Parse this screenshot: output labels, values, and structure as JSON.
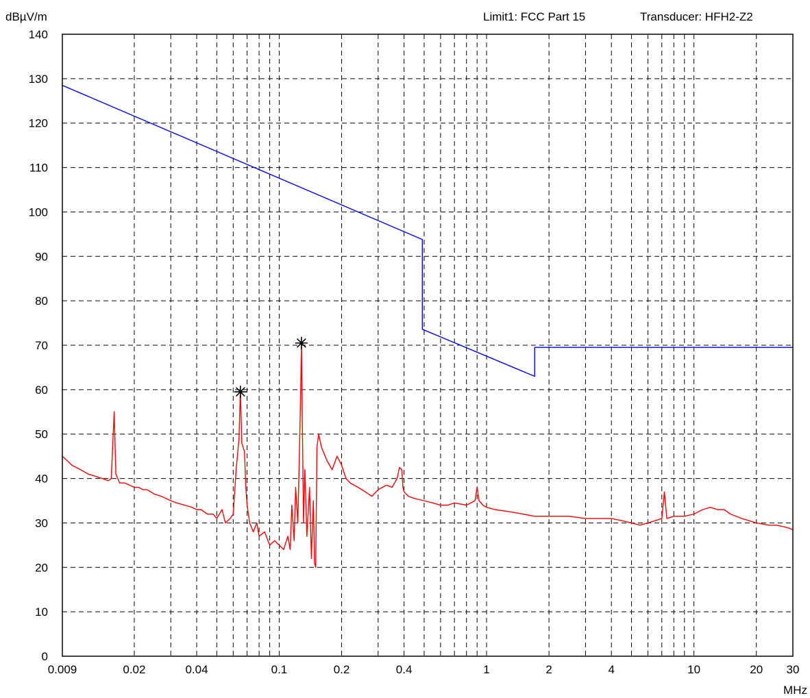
{
  "chart_data": {
    "type": "line",
    "ylabel": "dBµV/m",
    "xlabel": "MHz",
    "header_limit": "Limit1: FCC Part 15",
    "header_transducer": "Transducer: HFH2-Z2",
    "x_scale": "log",
    "xlim": [
      0.009,
      30
    ],
    "ylim": [
      0,
      140
    ],
    "grid": true,
    "x_ticks": [
      {
        "value": 0.009,
        "label": "0.009"
      },
      {
        "value": 0.02,
        "label": "0.02"
      },
      {
        "value": 0.04,
        "label": "0.04"
      },
      {
        "value": 0.1,
        "label": "0.1"
      },
      {
        "value": 0.2,
        "label": "0.2"
      },
      {
        "value": 0.4,
        "label": "0.4"
      },
      {
        "value": 1,
        "label": "1"
      },
      {
        "value": 2,
        "label": "2"
      },
      {
        "value": 4,
        "label": "4"
      },
      {
        "value": 10,
        "label": "10"
      },
      {
        "value": 20,
        "label": "20"
      },
      {
        "value": 30,
        "label": "30"
      }
    ],
    "x_grid": [
      0.009,
      0.02,
      0.03,
      0.04,
      0.05,
      0.06,
      0.07,
      0.08,
      0.09,
      0.1,
      0.2,
      0.3,
      0.4,
      0.5,
      0.6,
      0.7,
      0.8,
      0.9,
      1,
      2,
      3,
      4,
      5,
      6,
      7,
      8,
      9,
      10,
      20,
      30
    ],
    "y_ticks": [
      0,
      10,
      20,
      30,
      40,
      50,
      60,
      70,
      80,
      90,
      100,
      110,
      120,
      130,
      140
    ],
    "series": [
      {
        "color": "#0000ff",
        "points": [
          [
            0.009,
            128.5
          ],
          [
            0.49,
            93.8
          ],
          [
            0.49,
            73.6
          ],
          [
            1.705,
            63.0
          ],
          [
            1.705,
            69.5
          ],
          [
            30,
            69.5
          ]
        ]
      },
      {
        "color": "#ff0000",
        "points": [
          [
            0.009,
            45
          ],
          [
            0.0095,
            44
          ],
          [
            0.01,
            43
          ],
          [
            0.011,
            42
          ],
          [
            0.012,
            41
          ],
          [
            0.013,
            40.5
          ],
          [
            0.014,
            40
          ],
          [
            0.015,
            39.5
          ],
          [
            0.0155,
            40
          ],
          [
            0.016,
            55
          ],
          [
            0.0163,
            41
          ],
          [
            0.017,
            39
          ],
          [
            0.018,
            39
          ],
          [
            0.019,
            38.5
          ],
          [
            0.02,
            38
          ],
          [
            0.021,
            38
          ],
          [
            0.022,
            37.5
          ],
          [
            0.023,
            37.5
          ],
          [
            0.024,
            37
          ],
          [
            0.025,
            36.5
          ],
          [
            0.027,
            36
          ],
          [
            0.03,
            35
          ],
          [
            0.032,
            34.5
          ],
          [
            0.035,
            34
          ],
          [
            0.038,
            33.5
          ],
          [
            0.04,
            33
          ],
          [
            0.042,
            33
          ],
          [
            0.045,
            32
          ],
          [
            0.048,
            32
          ],
          [
            0.05,
            31
          ],
          [
            0.053,
            33
          ],
          [
            0.055,
            30
          ],
          [
            0.058,
            31
          ],
          [
            0.06,
            32
          ],
          [
            0.062,
            42
          ],
          [
            0.064,
            49
          ],
          [
            0.065,
            60
          ],
          [
            0.066,
            48
          ],
          [
            0.068,
            46
          ],
          [
            0.069,
            38
          ],
          [
            0.07,
            34
          ],
          [
            0.072,
            30
          ],
          [
            0.075,
            28
          ],
          [
            0.078,
            30
          ],
          [
            0.08,
            27
          ],
          [
            0.085,
            28
          ],
          [
            0.09,
            25
          ],
          [
            0.095,
            26
          ],
          [
            0.1,
            25
          ],
          [
            0.105,
            24
          ],
          [
            0.11,
            27
          ],
          [
            0.113,
            24
          ],
          [
            0.115,
            34
          ],
          [
            0.118,
            26
          ],
          [
            0.12,
            38
          ],
          [
            0.123,
            30
          ],
          [
            0.125,
            45
          ],
          [
            0.127,
            60
          ],
          [
            0.128,
            70.5
          ],
          [
            0.1295,
            50
          ],
          [
            0.131,
            30
          ],
          [
            0.133,
            42
          ],
          [
            0.136,
            27
          ],
          [
            0.14,
            38
          ],
          [
            0.143,
            22
          ],
          [
            0.146,
            35
          ],
          [
            0.148,
            21
          ],
          [
            0.15,
            20
          ],
          [
            0.152,
            47
          ],
          [
            0.155,
            50
          ],
          [
            0.16,
            47
          ],
          [
            0.17,
            44
          ],
          [
            0.18,
            42
          ],
          [
            0.19,
            45
          ],
          [
            0.2,
            43
          ],
          [
            0.21,
            40
          ],
          [
            0.22,
            39
          ],
          [
            0.24,
            38
          ],
          [
            0.26,
            37
          ],
          [
            0.28,
            36
          ],
          [
            0.3,
            37.5
          ],
          [
            0.33,
            38.5
          ],
          [
            0.35,
            38
          ],
          [
            0.37,
            40
          ],
          [
            0.38,
            42.5
          ],
          [
            0.39,
            42
          ],
          [
            0.395,
            38
          ],
          [
            0.4,
            37
          ],
          [
            0.42,
            36
          ],
          [
            0.45,
            35.5
          ],
          [
            0.5,
            35
          ],
          [
            0.55,
            34.5
          ],
          [
            0.6,
            34
          ],
          [
            0.65,
            34
          ],
          [
            0.7,
            34.5
          ],
          [
            0.8,
            34
          ],
          [
            0.88,
            35
          ],
          [
            0.9,
            38
          ],
          [
            0.92,
            35
          ],
          [
            0.96,
            34
          ],
          [
            1,
            33.5
          ],
          [
            1.1,
            33
          ],
          [
            1.3,
            32.5
          ],
          [
            1.5,
            32
          ],
          [
            1.7,
            31.5
          ],
          [
            2,
            31.5
          ],
          [
            2.5,
            31.5
          ],
          [
            3,
            31
          ],
          [
            3.5,
            31
          ],
          [
            4,
            31
          ],
          [
            4.5,
            30.5
          ],
          [
            5,
            30
          ],
          [
            5.5,
            29.5
          ],
          [
            6,
            30
          ],
          [
            6.5,
            30.5
          ],
          [
            7,
            31
          ],
          [
            7.2,
            37
          ],
          [
            7.4,
            31
          ],
          [
            8,
            31.5
          ],
          [
            9,
            31.5
          ],
          [
            10,
            32
          ],
          [
            11,
            33
          ],
          [
            12,
            33.5
          ],
          [
            13,
            33
          ],
          [
            14,
            33
          ],
          [
            15,
            32
          ],
          [
            17,
            31
          ],
          [
            20,
            30
          ],
          [
            23,
            29.5
          ],
          [
            25,
            29.5
          ],
          [
            28,
            29
          ],
          [
            30,
            28.5
          ]
        ]
      }
    ],
    "markers": [
      {
        "symbol": "*",
        "x": 0.065,
        "y": 59.5
      },
      {
        "symbol": "*",
        "x": 0.128,
        "y": 70.5
      }
    ]
  }
}
